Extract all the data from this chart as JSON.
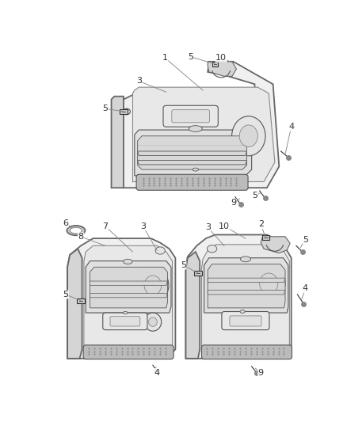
{
  "bg_color": "#ffffff",
  "lc": "#888888",
  "oc": "#555555",
  "dark": "#333333",
  "panel_fill": "#f0f0f0",
  "panel_stroke": "#666666",
  "inner_fill": "#e8e8e8",
  "arm_fill": "#e0e0e0",
  "deep_fill": "#d8d8d8",
  "grille_fill": "#bbbbbb",
  "speaker_fill": "#e5e5e5",
  "side_fill": "#d5d5d5",
  "figsize": [
    4.38,
    5.33
  ],
  "dpi": 100
}
